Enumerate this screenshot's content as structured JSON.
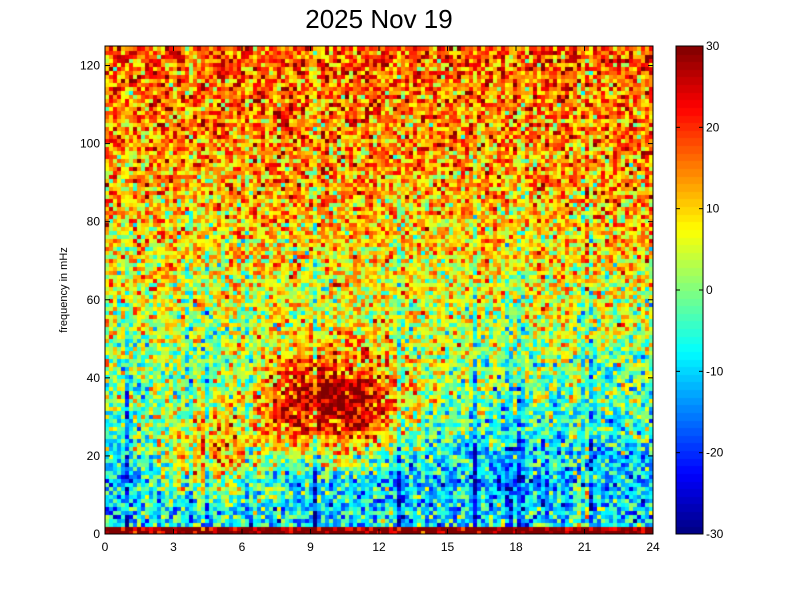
{
  "chart_data": {
    "type": "heatmap",
    "title": "2025 Nov 19",
    "xlabel": "",
    "ylabel": "frequency in mHz",
    "xlim": [
      0,
      24
    ],
    "ylim": [
      0,
      125
    ],
    "xticks": [
      0,
      3,
      6,
      9,
      12,
      15,
      18,
      21,
      24
    ],
    "yticks": [
      0,
      20,
      40,
      60,
      80,
      100,
      120
    ],
    "colorbar": {
      "colormap": "jet",
      "clim": [
        -30,
        30
      ],
      "ticks": [
        -30,
        -20,
        -10,
        0,
        10,
        20,
        30
      ]
    },
    "grid": false,
    "notable_features": {
      "broadband_energy_hours": [
        7.5,
        12.5
      ],
      "broadband_energy_freq_range": [
        25,
        45
      ],
      "vertical_streak_hours": [
        1.0,
        3.7,
        4.5,
        6.3,
        9.2,
        12.9,
        16.2,
        17.7,
        18.2,
        20.9,
        21.3
      ],
      "strong_low_freq_event_hour": 20.9
    }
  }
}
